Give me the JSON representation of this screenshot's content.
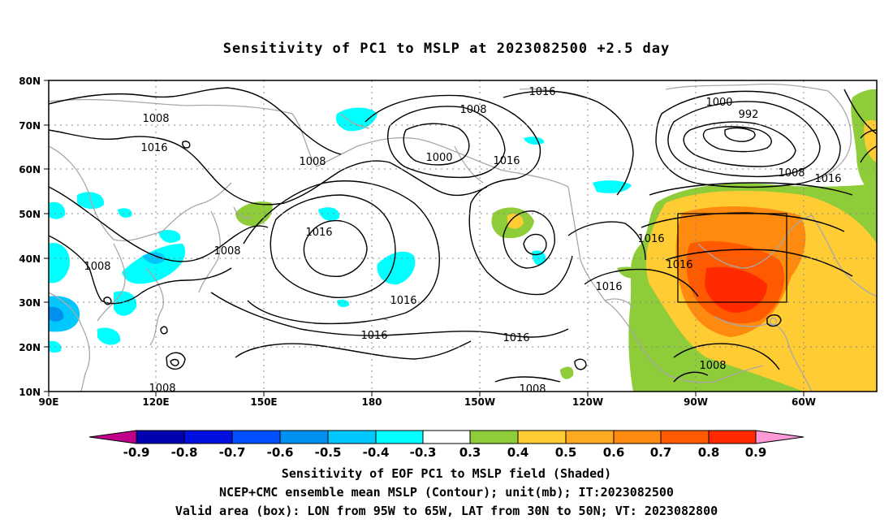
{
  "title": "Sensitivity of PC1 to MSLP at 2023082500 +2.5 day",
  "colors": {
    "neg09": "#c0008a",
    "neg08": "#0000b0",
    "neg07": "#0010e0",
    "neg06": "#0050ff",
    "neg05": "#0090f0",
    "neg04": "#00c8ff",
    "neg03": "#00ffff",
    "zero": "#ffffff",
    "pos03": "#8ecc3a",
    "pos04": "#ffcc33",
    "pos05": "#ffaa22",
    "pos06": "#ff8a10",
    "pos07": "#ff5a00",
    "pos08": "#ff2a00",
    "pos09": "#ff0000",
    "over": "#ff9ad8",
    "coast": "#a8a8a8",
    "contour": "#000000"
  },
  "axes": {
    "lat_labels": [
      "80N",
      "70N",
      "60N",
      "50N",
      "40N",
      "30N",
      "20N",
      "10N"
    ],
    "lon_labels": [
      "90E",
      "120E",
      "150E",
      "180",
      "150W",
      "120W",
      "90W",
      "60W"
    ]
  },
  "contour_labels": [
    "1008",
    "1016",
    "1008",
    "1016",
    "1008",
    "1008",
    "1016",
    "1016",
    "1016",
    "1016",
    "1008",
    "1000",
    "1016",
    "1016",
    "1000",
    "992",
    "1008",
    "1016",
    "1016",
    "1016",
    "1008",
    "1008",
    "1008"
  ],
  "colorbar": {
    "ticks": [
      "-0.9",
      "-0.8",
      "-0.7",
      "-0.6",
      "-0.5",
      "-0.4",
      "-0.3",
      "0.3",
      "0.4",
      "0.5",
      "0.6",
      "0.7",
      "0.8",
      "0.9"
    ]
  },
  "captions": {
    "line1": "Sensitivity of EOF PC1 to MSLP field (Shaded)",
    "line2": "NCEP+CMC ensemble mean MSLP (Contour); unit(mb); IT:2023082500",
    "line3": "Valid area (box): LON from 95W to 65W, LAT from 30N to 50N; VT: 2023082800"
  }
}
